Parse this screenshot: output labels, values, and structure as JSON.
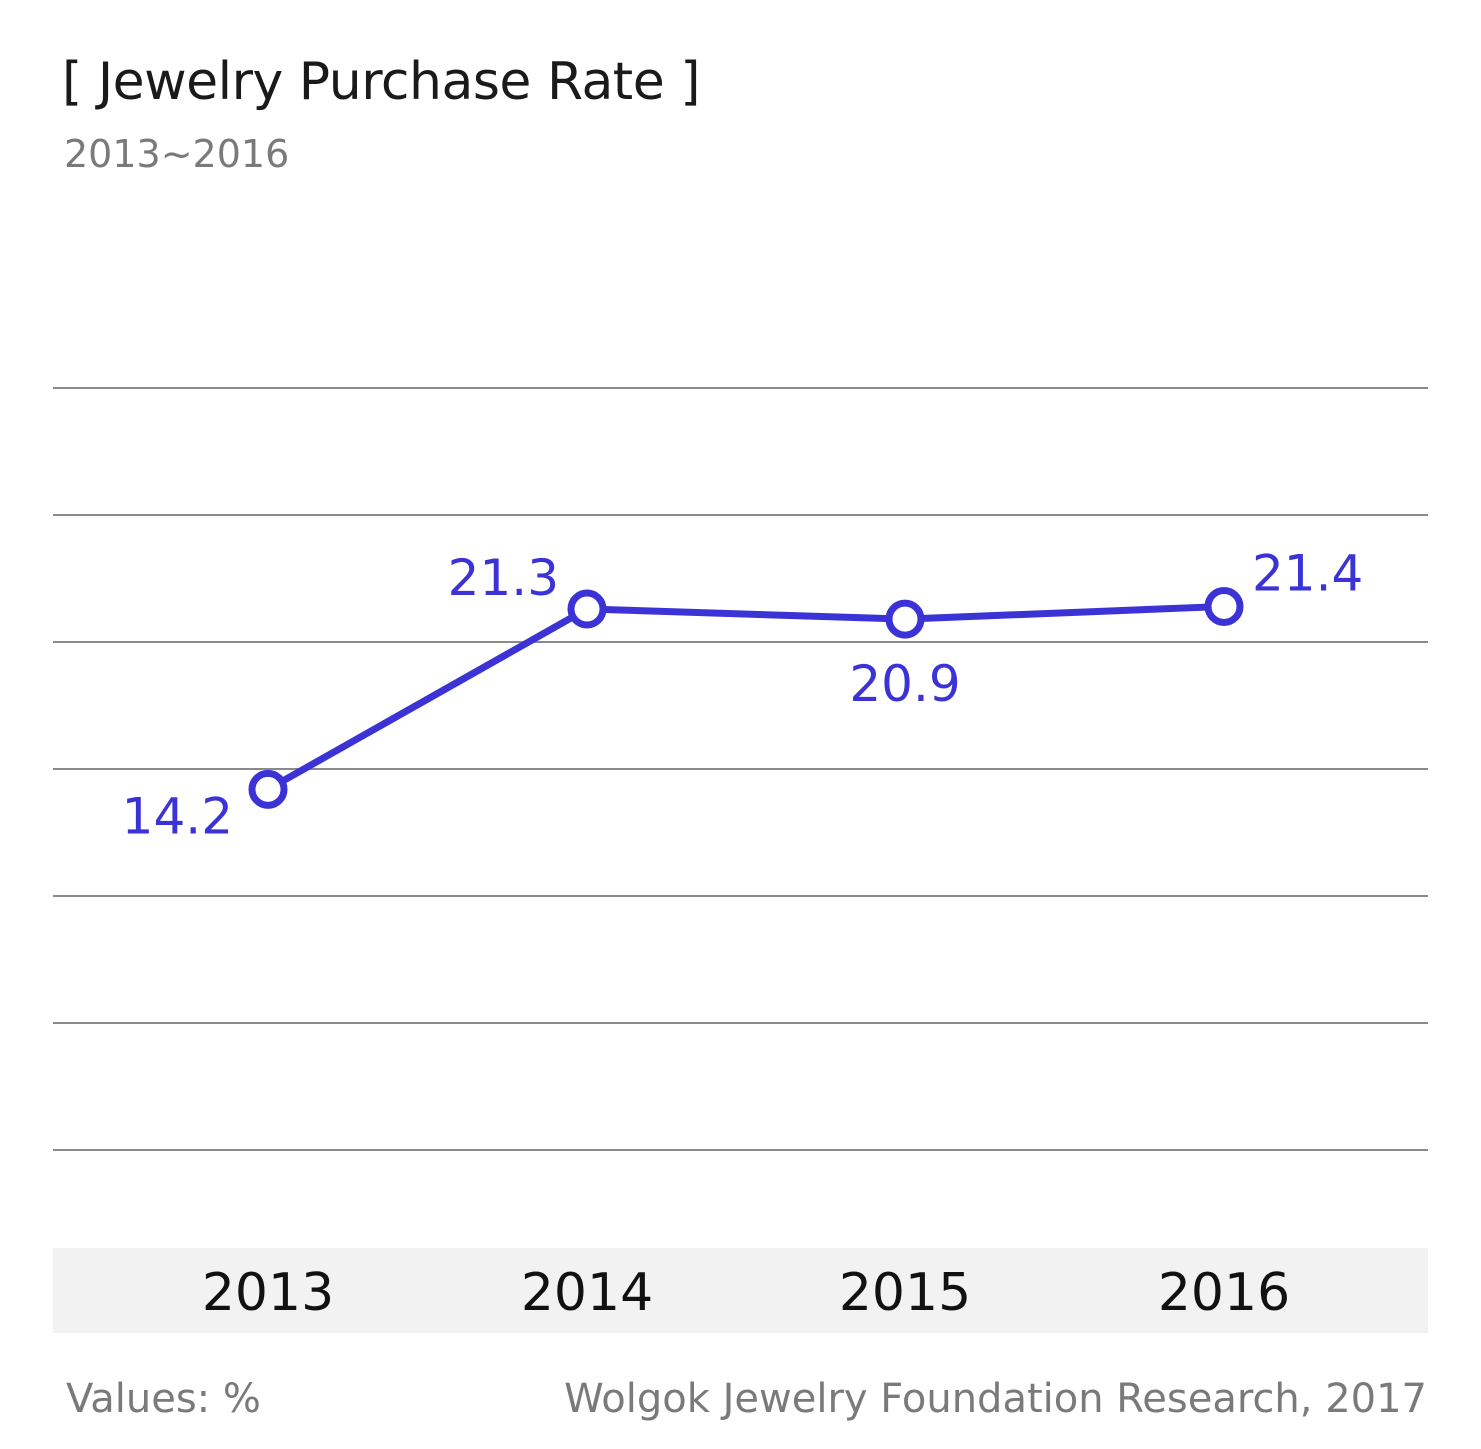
{
  "chart_data": {
    "type": "line",
    "title": "[ Jewelry Purchase Rate ]",
    "subtitle": "2013~2016",
    "categories": [
      "2013",
      "2014",
      "2015",
      "2016"
    ],
    "series": [
      {
        "name": "Jewelry Purchase Rate",
        "values": [
          14.2,
          21.3,
          20.9,
          21.4
        ],
        "color": "#3b33d6"
      }
    ],
    "data_labels": [
      "14.2",
      "21.3",
      "20.9",
      "21.4"
    ],
    "xlabel": "",
    "ylabel": "",
    "ylim": [
      0,
      30
    ],
    "grid": true,
    "legend": "none"
  },
  "footer": {
    "units": "Values: %",
    "source": "Wolgok Jewelry Foundation Research, 2017"
  },
  "colors": {
    "series": "#3b33d6",
    "grid": "#8a8a8a",
    "axis_band": "#f2f2f2",
    "title": "#1a1a1a",
    "muted": "#7a7a7a"
  }
}
